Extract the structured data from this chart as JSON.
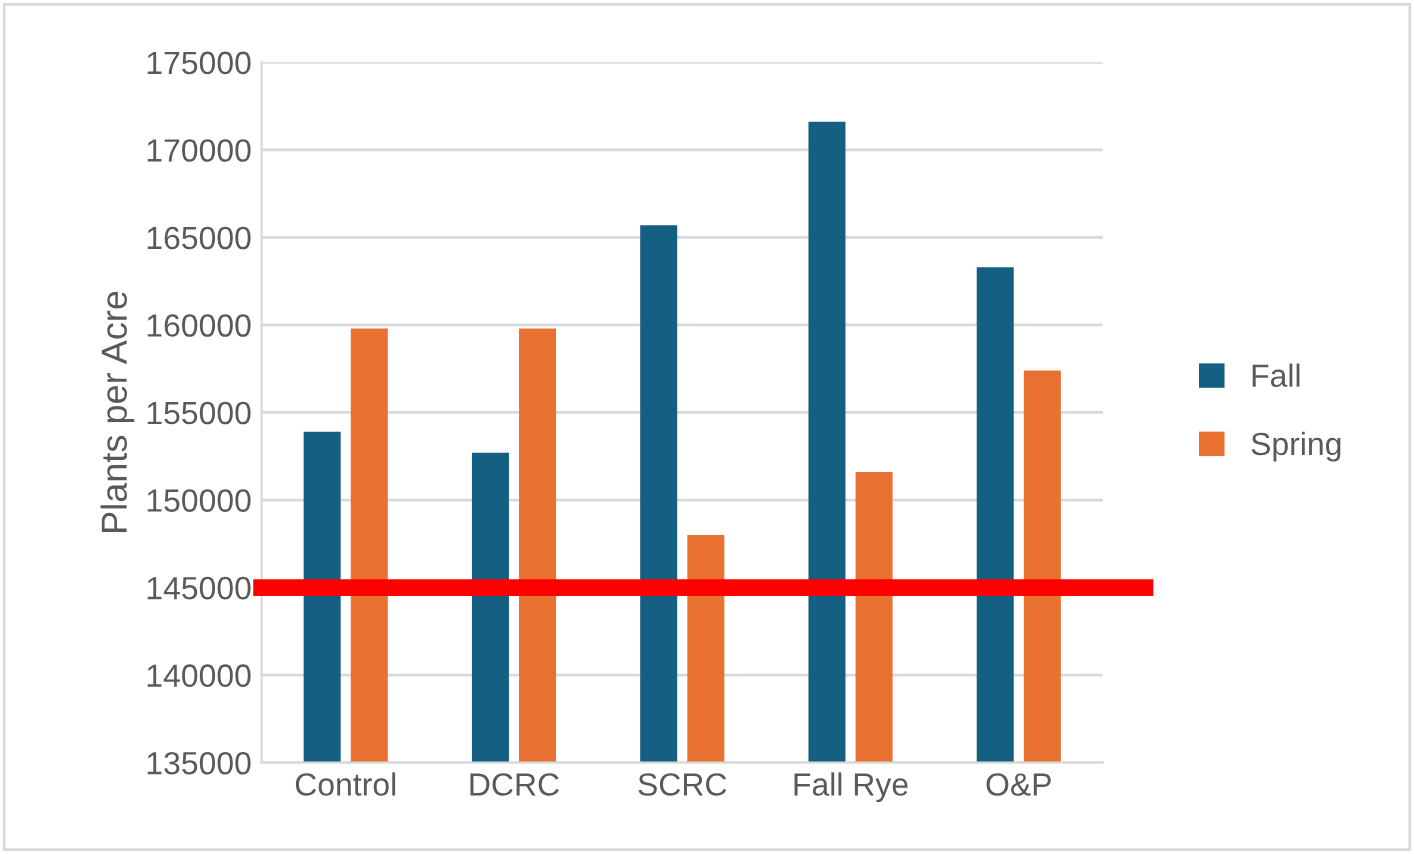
{
  "chart_data": {
    "type": "bar",
    "ylabel": "Plants per Acre",
    "categories": [
      "Control",
      "DCRC",
      "SCRC",
      "Fall Rye",
      "O&P"
    ],
    "series": [
      {
        "name": "Fall",
        "color": "#156082",
        "values": [
          153900,
          152700,
          165700,
          171600,
          163300
        ]
      },
      {
        "name": "Spring",
        "color": "#e97132",
        "values": [
          159800,
          159800,
          148000,
          151600,
          157400
        ]
      }
    ],
    "ylim": [
      135000,
      175000
    ],
    "yticks": [
      135000,
      140000,
      145000,
      150000,
      155000,
      160000,
      165000,
      170000,
      175000
    ],
    "grid": "y",
    "legend": "right",
    "ref_lines": [
      {
        "axis": "y",
        "value": 145000,
        "color": "#ff0000",
        "line_style": "solid"
      }
    ]
  }
}
